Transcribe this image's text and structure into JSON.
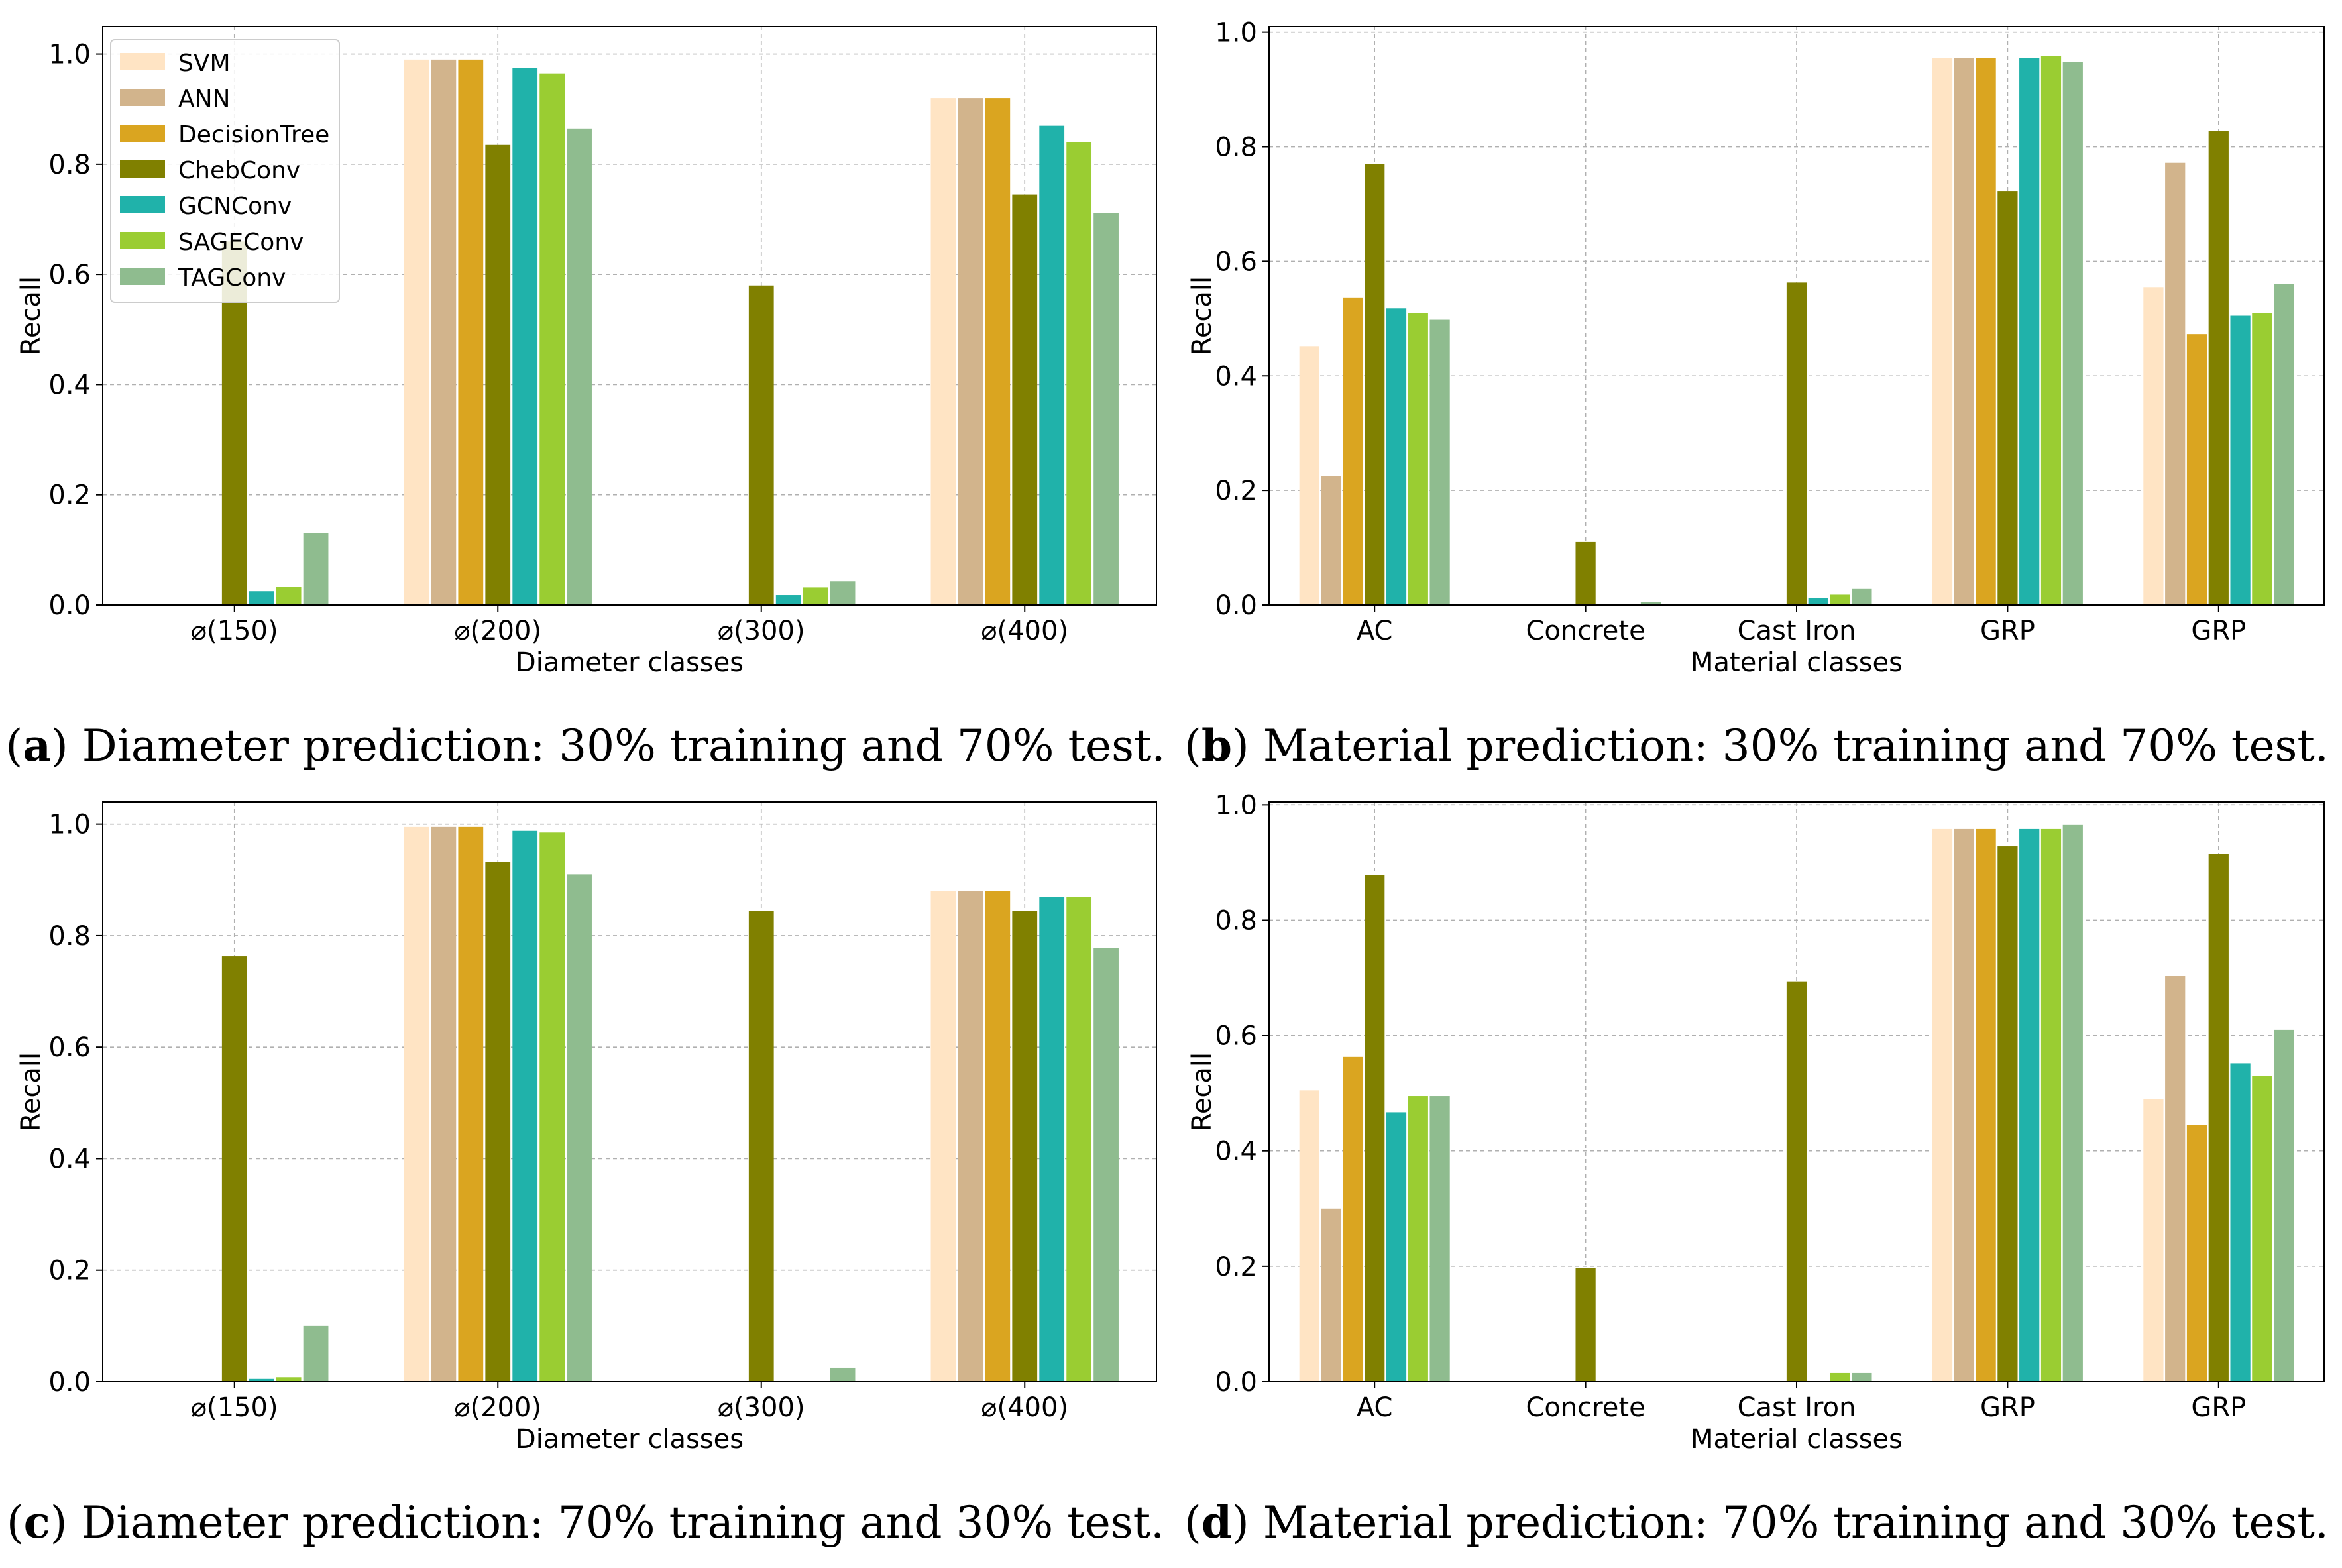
{
  "legend": [
    "SVM",
    "ANN",
    "DecisionTree",
    "ChebConv",
    "GCNConv",
    "SAGEConv",
    "TAGConv"
  ],
  "colors": {
    "SVM": "#ffe4c4",
    "ANN": "#d2b48c",
    "DecisionTree": "#daa520",
    "ChebConv": "#808000",
    "GCNConv": "#20b2aa",
    "SAGEConv": "#9acd32",
    "TAGConv": "#8fbc8f"
  },
  "chart_data": [
    {
      "id": "a",
      "type": "bar",
      "caption_letter": "a",
      "caption_text": "Diameter prediction: 30% training and 70% test.",
      "xlabel": "Diameter classes",
      "ylabel": "Recall",
      "ylim": [
        0,
        1.05
      ],
      "yticks": [
        "0.0",
        "0.2",
        "0.4",
        "0.6",
        "0.8",
        "1.0"
      ],
      "grid": true,
      "legend_position": "top-left",
      "categories": [
        "⌀(150)",
        "⌀(200)",
        "⌀(300)",
        "⌀(400)"
      ],
      "series": [
        {
          "name": "SVM",
          "values": [
            0.0,
            0.99,
            0.0,
            0.92
          ]
        },
        {
          "name": "ANN",
          "values": [
            0.0,
            0.99,
            0.0,
            0.92
          ]
        },
        {
          "name": "DecisionTree",
          "values": [
            0.0,
            0.99,
            0.0,
            0.92
          ]
        },
        {
          "name": "ChebConv",
          "values": [
            0.66,
            0.835,
            0.58,
            0.745
          ]
        },
        {
          "name": "GCNConv",
          "values": [
            0.025,
            0.975,
            0.018,
            0.87
          ]
        },
        {
          "name": "SAGEConv",
          "values": [
            0.033,
            0.965,
            0.032,
            0.84
          ]
        },
        {
          "name": "TAGConv",
          "values": [
            0.13,
            0.865,
            0.043,
            0.712
          ]
        }
      ]
    },
    {
      "id": "b",
      "type": "bar",
      "caption_letter": "b",
      "caption_text": "Material prediction: 30% training and 70% test.",
      "xlabel": "Material classes",
      "ylabel": "Recall",
      "ylim": [
        0,
        1.01
      ],
      "yticks": [
        "0.0",
        "0.2",
        "0.4",
        "0.6",
        "0.8",
        "1.0"
      ],
      "grid": true,
      "legend_position": "none",
      "categories": [
        "AC",
        "Concrete",
        "Cast Iron",
        "GRP",
        "GRP"
      ],
      "series": [
        {
          "name": "SVM",
          "values": [
            0.452,
            0.0,
            0.0,
            0.955,
            0.555
          ]
        },
        {
          "name": "ANN",
          "values": [
            0.225,
            0.0,
            0.0,
            0.955,
            0.772
          ]
        },
        {
          "name": "DecisionTree",
          "values": [
            0.537,
            0.0,
            0.0,
            0.955,
            0.473
          ]
        },
        {
          "name": "ChebConv",
          "values": [
            0.77,
            0.11,
            0.563,
            0.723,
            0.828
          ]
        },
        {
          "name": "GCNConv",
          "values": [
            0.518,
            0.0,
            0.012,
            0.955,
            0.505
          ]
        },
        {
          "name": "SAGEConv",
          "values": [
            0.51,
            0.0,
            0.018,
            0.958,
            0.51
          ]
        },
        {
          "name": "TAGConv",
          "values": [
            0.498,
            0.005,
            0.028,
            0.948,
            0.56
          ]
        }
      ]
    },
    {
      "id": "c",
      "type": "bar",
      "caption_letter": "c",
      "caption_text": "Diameter prediction: 70% training and 30% test.",
      "xlabel": "Diameter classes",
      "ylabel": "Recall",
      "ylim": [
        0,
        1.04
      ],
      "yticks": [
        "0.0",
        "0.2",
        "0.4",
        "0.6",
        "0.8",
        "1.0"
      ],
      "grid": true,
      "legend_position": "none",
      "categories": [
        "⌀(150)",
        "⌀(200)",
        "⌀(300)",
        "⌀(400)"
      ],
      "series": [
        {
          "name": "SVM",
          "values": [
            0.0,
            0.995,
            0.0,
            0.88
          ]
        },
        {
          "name": "ANN",
          "values": [
            0.0,
            0.995,
            0.0,
            0.88
          ]
        },
        {
          "name": "DecisionTree",
          "values": [
            0.0,
            0.995,
            0.0,
            0.88
          ]
        },
        {
          "name": "ChebConv",
          "values": [
            0.763,
            0.932,
            0.845,
            0.845
          ]
        },
        {
          "name": "GCNConv",
          "values": [
            0.005,
            0.988,
            0.0,
            0.87
          ]
        },
        {
          "name": "SAGEConv",
          "values": [
            0.008,
            0.985,
            0.0,
            0.87
          ]
        },
        {
          "name": "TAGConv",
          "values": [
            0.1,
            0.91,
            0.025,
            0.778
          ]
        }
      ]
    },
    {
      "id": "d",
      "type": "bar",
      "caption_letter": "d",
      "caption_text": "Material prediction: 70% training and 30% test.",
      "xlabel": "Material classes",
      "ylabel": "Recall",
      "ylim": [
        0,
        1.005
      ],
      "yticks": [
        "0.0",
        "0.2",
        "0.4",
        "0.6",
        "0.8",
        "1.0"
      ],
      "grid": true,
      "legend_position": "none",
      "categories": [
        "AC",
        "Concrete",
        "Cast Iron",
        "GRP",
        "GRP"
      ],
      "series": [
        {
          "name": "SVM",
          "values": [
            0.505,
            0.0,
            0.0,
            0.958,
            0.49
          ]
        },
        {
          "name": "ANN",
          "values": [
            0.3,
            0.0,
            0.0,
            0.958,
            0.703
          ]
        },
        {
          "name": "DecisionTree",
          "values": [
            0.563,
            0.0,
            0.0,
            0.958,
            0.445
          ]
        },
        {
          "name": "ChebConv",
          "values": [
            0.878,
            0.197,
            0.693,
            0.928,
            0.915
          ]
        },
        {
          "name": "GCNConv",
          "values": [
            0.467,
            0.0,
            0.0,
            0.958,
            0.552
          ]
        },
        {
          "name": "SAGEConv",
          "values": [
            0.495,
            0.0,
            0.015,
            0.958,
            0.53
          ]
        },
        {
          "name": "TAGConv",
          "values": [
            0.495,
            0.0,
            0.015,
            0.965,
            0.61
          ]
        }
      ]
    }
  ]
}
